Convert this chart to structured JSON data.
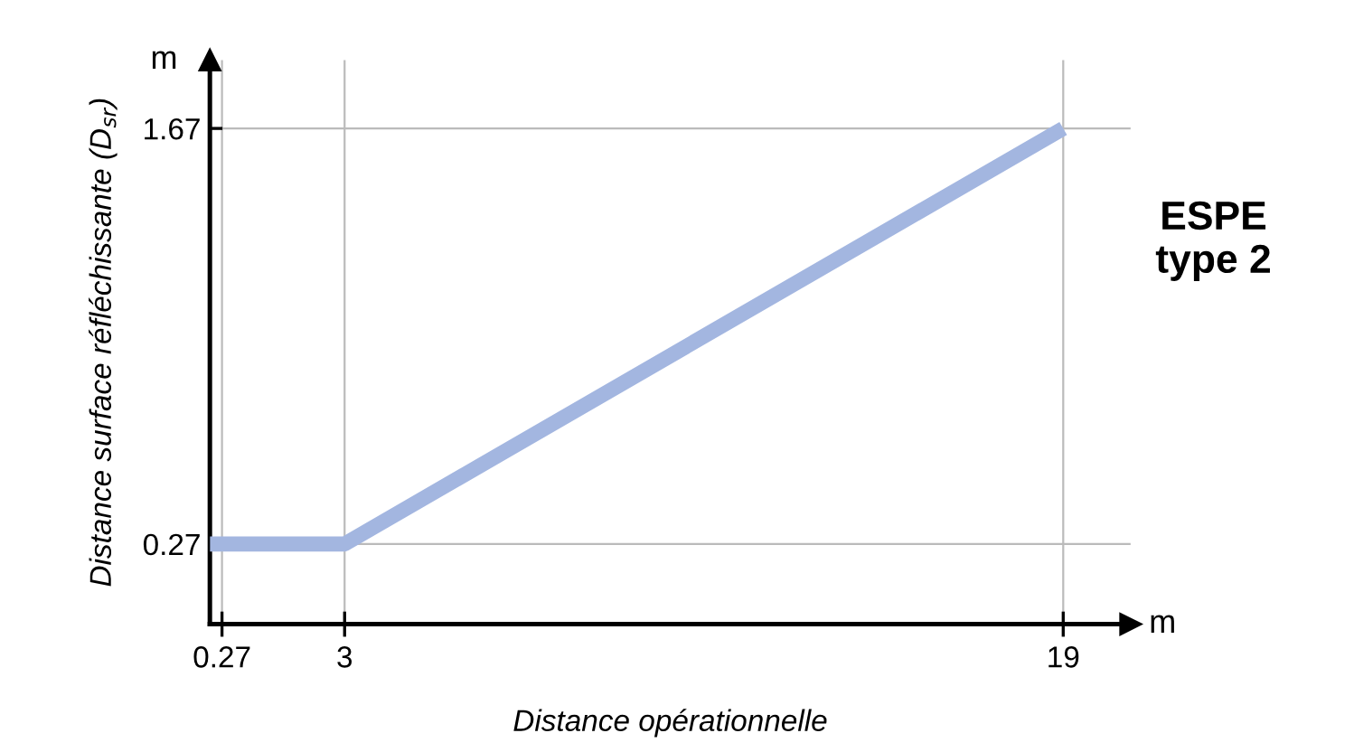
{
  "chart_data": {
    "type": "line",
    "xlabel": "Distance opérationnelle",
    "ylabel": "Distance surface réfléchissante (D$_{sr}$)",
    "annotations": [
      "m",
      "m",
      "ESPE\ntype 2"
    ],
    "series": [
      {
        "x": [
          0,
          3,
          19
        ],
        "values": [
          0.27,
          0.27,
          1.67
        ],
        "color": "#a3b6e0"
      }
    ],
    "xlim": [
      0,
      20.5
    ],
    "xticks": [
      0.27,
      3,
      19
    ],
    "ylim": [
      0,
      1.9
    ],
    "yticks": [
      0.27,
      1.67
    ],
    "grid": true,
    "legend": false,
    "marker": "none",
    "line_style": "solid"
  }
}
